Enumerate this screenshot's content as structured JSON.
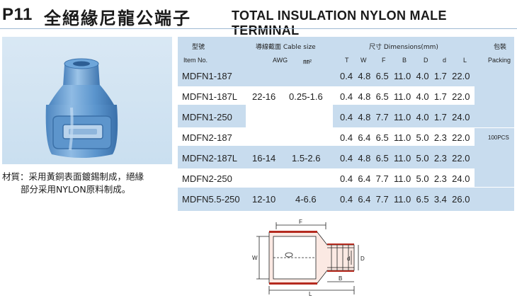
{
  "header": {
    "code": "P11",
    "title_cn": "全絕緣尼龍公端子",
    "title_en": "TOTAL INSULATION NYLON MALE TERMINAL"
  },
  "material": {
    "line1": "材質：采用黃銅表面鍍錫制成，絕緣",
    "line2": "部分采用NYLON原料制成。"
  },
  "table": {
    "headers": {
      "model_cn": "型號",
      "model_en": "Item No.",
      "cable_cn": "導線截面 Cable size",
      "awg": "AWG",
      "mm2": "㎜²",
      "dims": "尺寸  Dimensions(mm)",
      "packing_cn": "包裝",
      "packing_en": "Packing",
      "cols": [
        "T",
        "W",
        "F",
        "B",
        "D",
        "d",
        "L"
      ]
    },
    "rows": [
      {
        "item": "MDFN1-187",
        "dims": [
          "0.4",
          "4.8",
          "6.5",
          "11.0",
          "4.0",
          "1.7",
          "22.0"
        ]
      },
      {
        "item": "MDFN1-187L",
        "dims": [
          "0.4",
          "4.8",
          "6.5",
          "11.0",
          "4.0",
          "1.7",
          "22.0"
        ]
      },
      {
        "item": "MDFN1-250",
        "dims": [
          "0.4",
          "4.8",
          "7.7",
          "11.0",
          "4.0",
          "1.7",
          "24.0"
        ]
      },
      {
        "item": "MDFN2-187",
        "dims": [
          "0.4",
          "6.4",
          "6.5",
          "11.0",
          "5.0",
          "2.3",
          "22.0"
        ]
      },
      {
        "item": "MDFN2-187L",
        "dims": [
          "0.4",
          "4.8",
          "6.5",
          "11.0",
          "5.0",
          "2.3",
          "22.0"
        ]
      },
      {
        "item": "MDFN2-250",
        "dims": [
          "0.4",
          "6.4",
          "7.7",
          "11.0",
          "5.0",
          "2.3",
          "24.0"
        ]
      },
      {
        "item": "MDFN5.5-250",
        "dims": [
          "0.4",
          "6.4",
          "7.7",
          "11.0",
          "6.5",
          "3.4",
          "26.0"
        ]
      }
    ],
    "groups": [
      {
        "awg": "22-16",
        "mm2": "0.25-1.6"
      },
      {
        "awg": "16-14",
        "mm2": "1.5-2.6"
      },
      {
        "awg": "12-10",
        "mm2": "4-6.6"
      }
    ],
    "packing": "100PCS"
  },
  "drawing": {
    "labels": {
      "f": "F",
      "w": "W",
      "d_small": "d",
      "d_big": "D",
      "b": "B",
      "l": "L"
    }
  }
}
